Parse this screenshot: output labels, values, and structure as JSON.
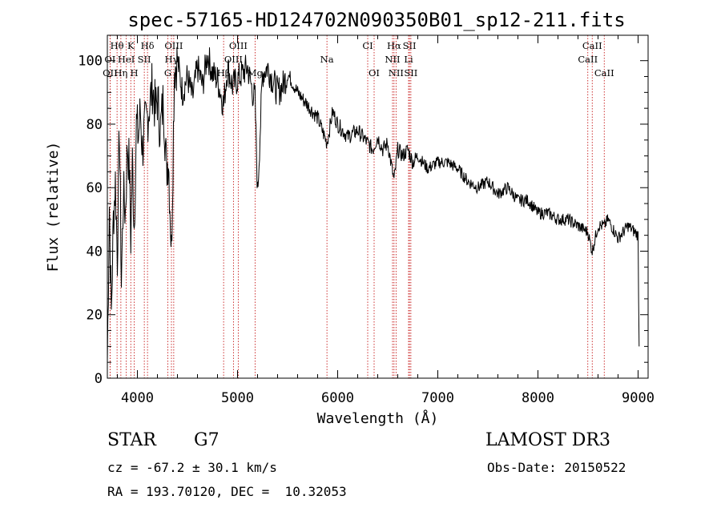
{
  "chart_data": {
    "type": "line",
    "title": "spec-57165-HD124702N090350B01_sp12-211.fits",
    "xlabel": "Wavelength (Å)",
    "ylabel": "Flux (relative)",
    "xlim": [
      3700,
      9100
    ],
    "ylim": [
      0,
      108
    ],
    "xticks": [
      4000,
      5000,
      6000,
      7000,
      8000,
      9000
    ],
    "yticks": [
      0,
      20,
      40,
      60,
      80,
      100
    ],
    "grid": false,
    "series": [
      {
        "name": "spectrum",
        "x": [
          3700,
          3720,
          3740,
          3760,
          3780,
          3800,
          3820,
          3840,
          3860,
          3880,
          3900,
          3920,
          3934,
          3950,
          3968,
          3990,
          4010,
          4030,
          4050,
          4070,
          4101,
          4120,
          4150,
          4180,
          4200,
          4230,
          4260,
          4290,
          4310,
          4340,
          4370,
          4400,
          4450,
          4500,
          4550,
          4600,
          4650,
          4700,
          4750,
          4800,
          4861,
          4900,
          4950,
          5000,
          5050,
          5100,
          5150,
          5175,
          5200,
          5250,
          5300,
          5350,
          5400,
          5450,
          5500,
          5600,
          5700,
          5800,
          5893,
          5950,
          6000,
          6100,
          6200,
          6300,
          6350,
          6400,
          6450,
          6500,
          6563,
          6600,
          6650,
          6700,
          6750,
          6800,
          6900,
          7000,
          7100,
          7200,
          7300,
          7400,
          7500,
          7600,
          7700,
          7800,
          7900,
          8000,
          8100,
          8200,
          8300,
          8400,
          8498,
          8542,
          8600,
          8662,
          8700,
          8800,
          8900,
          9000,
          9010
        ],
        "y": [
          5,
          55,
          20,
          50,
          62,
          38,
          80,
          30,
          58,
          52,
          74,
          66,
          44,
          68,
          48,
          80,
          76,
          84,
          72,
          78,
          82,
          86,
          92,
          84,
          88,
          78,
          88,
          66,
          70,
          40,
          98,
          100,
          90,
          95,
          88,
          98,
          92,
          102,
          96,
          94,
          86,
          98,
          92,
          94,
          96,
          98,
          90,
          88,
          58,
          96,
          98,
          94,
          90,
          92,
          96,
          90,
          86,
          82,
          74,
          84,
          80,
          76,
          78,
          74,
          72,
          76,
          72,
          74,
          62,
          72,
          70,
          72,
          68,
          70,
          66,
          68,
          68,
          66,
          62,
          60,
          62,
          58,
          60,
          56,
          56,
          52,
          52,
          50,
          50,
          48,
          46,
          40,
          48,
          48,
          50,
          44,
          48,
          45,
          10
        ]
      }
    ],
    "line_markers": [
      {
        "label": "Hθ",
        "x": 3797,
        "row": 1
      },
      {
        "label": "K",
        "x": 3934,
        "row": 1
      },
      {
        "label": "Hδ",
        "x": 4101,
        "row": 1
      },
      {
        "label": "OIII",
        "x": 4363,
        "row": 1
      },
      {
        "label": "OIII",
        "x": 5007,
        "row": 1
      },
      {
        "label": "CI",
        "x": 6300,
        "row": 1
      },
      {
        "label": "Hα",
        "x": 6563,
        "row": 1
      },
      {
        "label": "SII",
        "x": 6717,
        "row": 1
      },
      {
        "label": "CaII",
        "x": 8542,
        "row": 1
      },
      {
        "label": "OI",
        "x": 3727,
        "row": 2
      },
      {
        "label": "HeI",
        "x": 3889,
        "row": 2
      },
      {
        "label": "SII",
        "x": 4069,
        "row": 2
      },
      {
        "label": "Hγ",
        "x": 4340,
        "row": 2
      },
      {
        "label": "OIII",
        "x": 4959,
        "row": 2
      },
      {
        "label": "Na",
        "x": 5893,
        "row": 2
      },
      {
        "label": "NII",
        "x": 6548,
        "row": 2
      },
      {
        "label": "Li",
        "x": 6708,
        "row": 2
      },
      {
        "label": "CaII",
        "x": 8498,
        "row": 2
      },
      {
        "label": "OII",
        "x": 3727,
        "row": 3
      },
      {
        "label": "Hη",
        "x": 3835,
        "row": 3
      },
      {
        "label": "H",
        "x": 3968,
        "row": 3
      },
      {
        "label": "G",
        "x": 4304,
        "row": 3
      },
      {
        "label": "Hβ",
        "x": 4861,
        "row": 3
      },
      {
        "label": "Mg",
        "x": 5175,
        "row": 3
      },
      {
        "label": "OI",
        "x": 6364,
        "row": 3
      },
      {
        "label": "NII",
        "x": 6583,
        "row": 3
      },
      {
        "label": "SII",
        "x": 6731,
        "row": 3
      },
      {
        "label": "CaII",
        "x": 8662,
        "row": 3
      }
    ]
  },
  "info": {
    "object_class": "STAR",
    "subclass": "G7",
    "survey": "LAMOST DR3",
    "redshift": "cz = -67.2 ± 30.1 km/s",
    "obs_date": "Obs-Date: 20150522",
    "coords": "RA = 193.70120, DEC =  10.32053"
  }
}
